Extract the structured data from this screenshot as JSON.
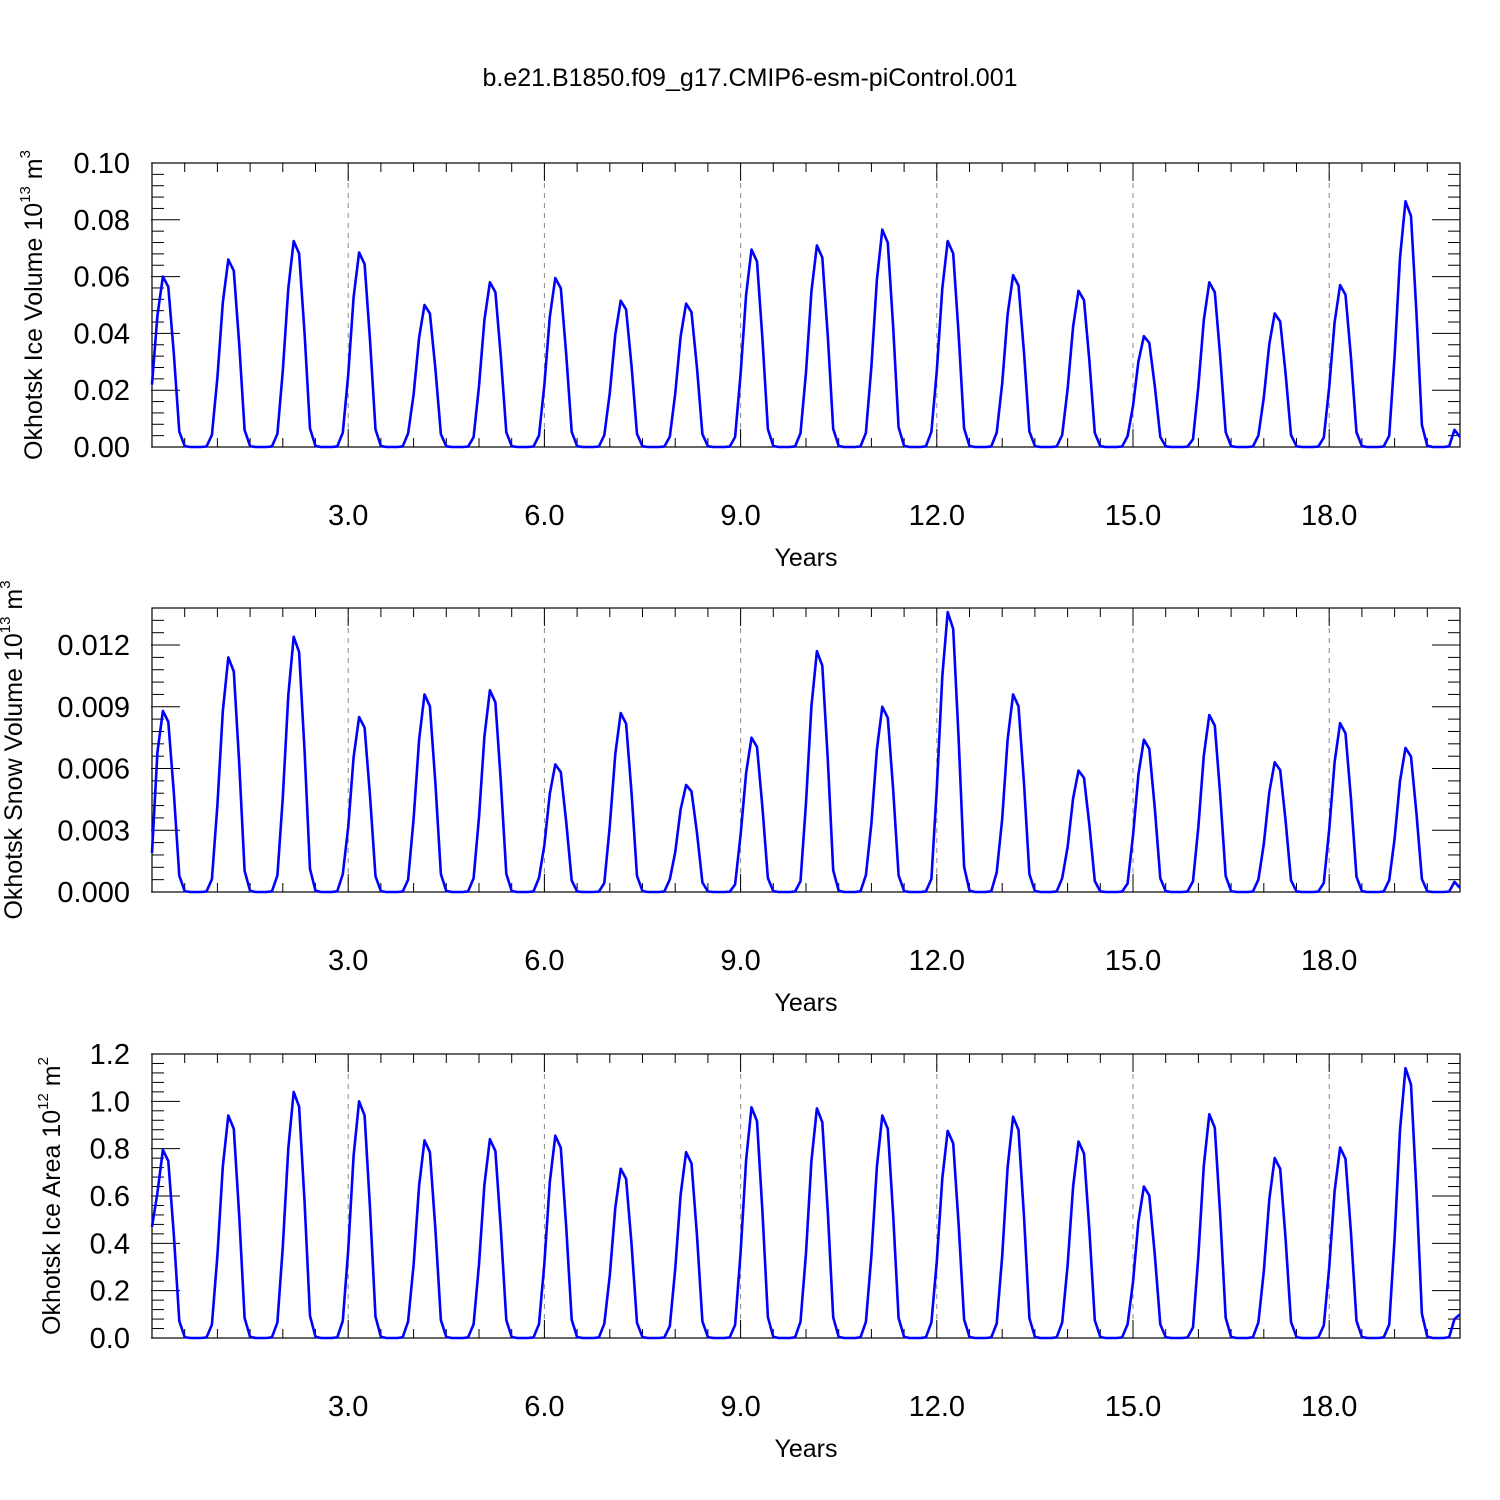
{
  "title": "b.e21.B1850.f09_g17.CMIP6-esm-piControl.001",
  "chart_data": [
    {
      "type": "line",
      "ylabel": "Okhotsk Ice Volume 10",
      "ylabel_exp": "13",
      "ylabel_unit": " m",
      "ylabel_unit_exp": "3",
      "xlabel": "Years",
      "xlim": [
        0,
        20.0
      ],
      "ylim": [
        0,
        0.1
      ],
      "x_ticks": [
        3.0,
        6.0,
        9.0,
        12.0,
        15.0,
        18.0
      ],
      "x_tick_labels": [
        "3.0",
        "6.0",
        "9.0",
        "12.0",
        "15.0",
        "18.0"
      ],
      "y_ticks": [
        0,
        0.02,
        0.04,
        0.06,
        0.08,
        0.1
      ],
      "y_tick_labels": [
        "0.00",
        "0.02",
        "0.04",
        "0.06",
        "0.08",
        "0.10"
      ],
      "grid": "dashed vertical at x ticks",
      "color": "#0000ff",
      "peaks": [
        0.06,
        0.066,
        0.0725,
        0.0685,
        0.05,
        0.058,
        0.0595,
        0.0515,
        0.0505,
        0.0695,
        0.071,
        0.0765,
        0.0725,
        0.0605,
        0.055,
        0.039,
        0.058,
        0.047,
        0.057,
        0.0865
      ],
      "start": 0.022,
      "end": 0.0035
    },
    {
      "type": "line",
      "ylabel": "Okhotsk Snow Volume 10",
      "ylabel_exp": "13",
      "ylabel_unit": " m",
      "ylabel_unit_exp": "3",
      "xlabel": "Years",
      "xlim": [
        0,
        20.0
      ],
      "ylim": [
        0,
        0.0138
      ],
      "x_ticks": [
        3.0,
        6.0,
        9.0,
        12.0,
        15.0,
        18.0
      ],
      "x_tick_labels": [
        "3.0",
        "6.0",
        "9.0",
        "12.0",
        "15.0",
        "18.0"
      ],
      "y_ticks": [
        0,
        0.003,
        0.006,
        0.009,
        0.012
      ],
      "y_tick_labels": [
        "0.000",
        "0.003",
        "0.006",
        "0.009",
        "0.012"
      ],
      "grid": "dashed vertical at x ticks",
      "color": "#0000ff",
      "peaks": [
        0.0088,
        0.0114,
        0.0124,
        0.0085,
        0.0096,
        0.0098,
        0.0062,
        0.0087,
        0.0052,
        0.0075,
        0.0117,
        0.009,
        0.0136,
        0.0096,
        0.0059,
        0.0074,
        0.0086,
        0.0063,
        0.0082,
        0.007
      ],
      "start": 0.0019,
      "end": 0.0002
    },
    {
      "type": "line",
      "ylabel": "Okhotsk Ice Area 10",
      "ylabel_exp": "12",
      "ylabel_unit": " m",
      "ylabel_unit_exp": "2",
      "xlabel": "Years",
      "xlim": [
        0,
        20.0
      ],
      "ylim": [
        0,
        1.2
      ],
      "x_ticks": [
        3.0,
        6.0,
        9.0,
        12.0,
        15.0,
        18.0
      ],
      "x_tick_labels": [
        "3.0",
        "6.0",
        "9.0",
        "12.0",
        "15.0",
        "18.0"
      ],
      "y_ticks": [
        0,
        0.2,
        0.4,
        0.6,
        0.8,
        1.0,
        1.2
      ],
      "y_tick_labels": [
        "0.0",
        "0.2",
        "0.4",
        "0.6",
        "0.8",
        "1.0",
        "1.2"
      ],
      "grid": "dashed vertical at x ticks",
      "color": "#0000ff",
      "peaks": [
        0.795,
        0.94,
        1.04,
        1.0,
        0.835,
        0.84,
        0.855,
        0.715,
        0.785,
        0.975,
        0.97,
        0.94,
        0.875,
        0.935,
        0.83,
        0.64,
        0.945,
        0.76,
        0.805,
        1.14
      ],
      "start": 0.47,
      "end": 0.1
    }
  ]
}
